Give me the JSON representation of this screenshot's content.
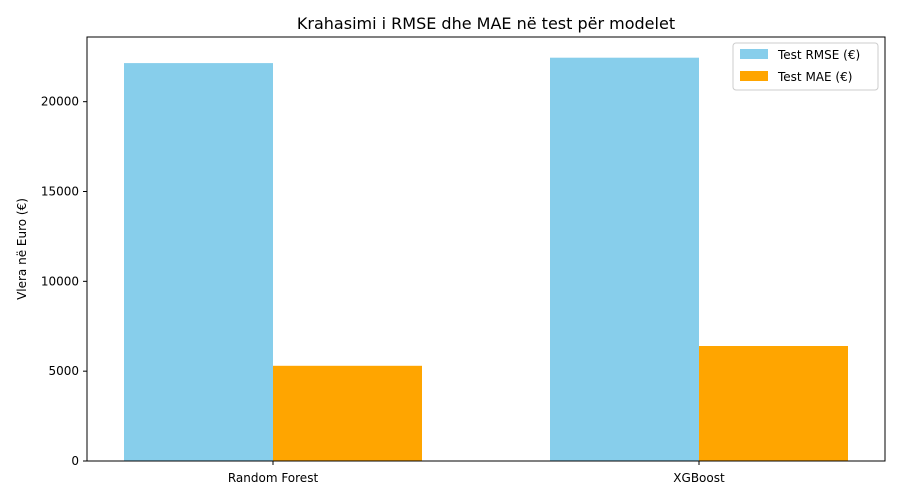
{
  "chart_data": {
    "type": "bar",
    "title": "Krahasimi i RMSE dhe MAE në test për modelet",
    "xlabel": "",
    "ylabel": "Vlera në Euro (€)",
    "categories": [
      "Random Forest",
      "XGBoost"
    ],
    "series": [
      {
        "name": "Test RMSE (€)",
        "color": "#87ceeb",
        "values": [
          22150,
          22450
        ]
      },
      {
        "name": "Test MAE (€)",
        "color": "#ffa500",
        "values": [
          5300,
          6400
        ]
      }
    ],
    "ylim": [
      0,
      23600
    ],
    "yticks": [
      0,
      5000,
      10000,
      15000,
      20000
    ],
    "grid": false,
    "legend_position": "top-right"
  }
}
